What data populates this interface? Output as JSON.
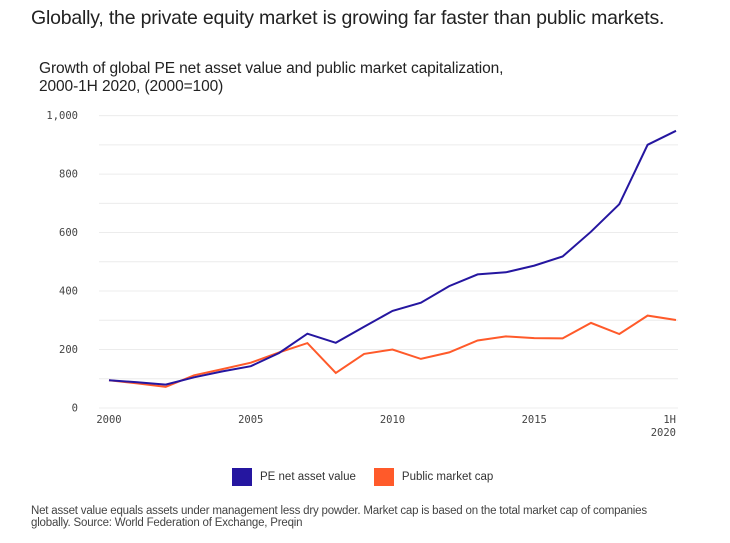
{
  "headline": "Globally, the private equity market is growing far faster than public markets.",
  "chart_data": {
    "type": "line",
    "title": "Growth of global PE net asset value and public market capitalization,",
    "subtitle": "2000-1H 2020, (2000=100)",
    "xlabel": "",
    "ylabel": "",
    "x": [
      "2000",
      "2001",
      "2002",
      "2003",
      "2004",
      "2005",
      "2006",
      "2007",
      "2008",
      "2009",
      "2010",
      "2011",
      "2012",
      "2013",
      "2014",
      "2015",
      "2016",
      "2017",
      "2018",
      "2019",
      "1H 2020"
    ],
    "x_tick_labels": [
      {
        "index": 0,
        "lines": [
          "2000"
        ]
      },
      {
        "index": 5,
        "lines": [
          "2005"
        ]
      },
      {
        "index": 10,
        "lines": [
          "2010"
        ]
      },
      {
        "index": 15,
        "lines": [
          "2015"
        ]
      },
      {
        "index": 20,
        "lines": [
          "1H",
          "2020"
        ]
      }
    ],
    "y_ticks": [
      0,
      200,
      400,
      600,
      800,
      1000
    ],
    "y_tick_labels": [
      "0",
      "200",
      "400",
      "600",
      "800",
      "1,000"
    ],
    "ylim": [
      0,
      1000
    ],
    "grid": true,
    "grid_step": 100,
    "series": [
      {
        "name": "PE net asset value",
        "color": "#2516A0",
        "values": [
          95,
          88,
          80,
          105,
          125,
          143,
          188,
          254,
          223,
          278,
          332,
          360,
          417,
          457,
          464,
          487,
          518,
          603,
          697,
          900,
          948
        ]
      },
      {
        "name": "Public market cap",
        "color": "#FF5A2A",
        "values": [
          95,
          84,
          72,
          112,
          133,
          155,
          190,
          222,
          120,
          185,
          200,
          168,
          190,
          231,
          245,
          239,
          238,
          291,
          253,
          316,
          301
        ]
      }
    ],
    "legend_position": "bottom-center"
  },
  "legend": [
    {
      "label": "PE net asset value",
      "color": "#2516A0"
    },
    {
      "label": "Public market cap",
      "color": "#FF5A2A"
    }
  ],
  "footnote": "Net asset value equals assets under management less dry powder. Market cap is based on the total market cap of companies globally. Source: World Federation of Exchange, Preqin"
}
